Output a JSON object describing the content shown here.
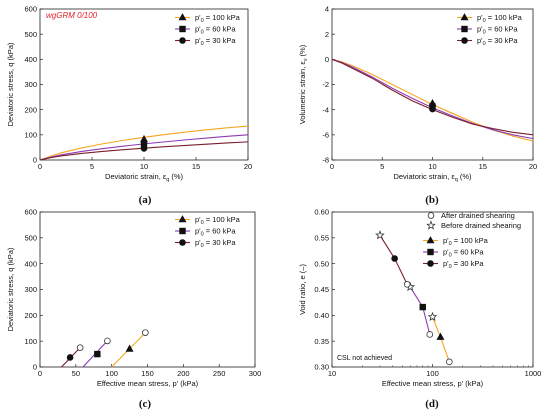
{
  "colors": {
    "s100": "#f5a623",
    "s60": "#8e3bb5",
    "s30": "#7a1f2b",
    "axis": "#222222",
    "note_red": "#e8202a"
  },
  "chart_data": [
    {
      "type": "line",
      "caption": "(a)",
      "xlabel": "Deviatoric strain, ε",
      "xlabel_sub": "q",
      "xlabel_unit": " (%)",
      "ylabel": "Deviatoric stress, q (kPa)",
      "xlim": [
        0,
        20
      ],
      "ylim": [
        0,
        600
      ],
      "xticks": [
        0,
        5,
        10,
        15,
        20
      ],
      "yticks": [
        0,
        100,
        200,
        300,
        400,
        500,
        600
      ],
      "annotation": "wgGRM 0/100",
      "legend_position": "top-right",
      "series": [
        {
          "name": "p'₀ = 100 kPa",
          "marker": "triangle",
          "color": "#f5a623",
          "x": [
            0,
            1,
            2,
            4,
            6,
            8,
            10,
            12,
            14,
            16,
            18,
            20
          ],
          "y": [
            0,
            15,
            28,
            48,
            64,
            78,
            90,
            101,
            111,
            120,
            128,
            135
          ],
          "marker_points": [
            {
              "x": 10,
              "y": 82
            }
          ]
        },
        {
          "name": "p'₀ = 60 kPa",
          "marker": "square",
          "color": "#8e3bb5",
          "x": [
            0,
            1,
            2,
            4,
            6,
            8,
            10,
            12,
            14,
            16,
            18,
            20
          ],
          "y": [
            0,
            11,
            20,
            34,
            45,
            55,
            64,
            72,
            80,
            87,
            94,
            100
          ],
          "marker_points": [
            {
              "x": 10,
              "y": 62
            }
          ]
        },
        {
          "name": "p'₀ = 30 kPa",
          "marker": "circle",
          "color": "#7a1f2b",
          "x": [
            0,
            1,
            2,
            4,
            6,
            8,
            10,
            12,
            14,
            16,
            18,
            20
          ],
          "y": [
            0,
            9,
            16,
            26,
            34,
            41,
            47,
            53,
            58,
            63,
            68,
            72
          ],
          "marker_points": [
            {
              "x": 10,
              "y": 46
            }
          ]
        }
      ]
    },
    {
      "type": "line",
      "caption": "(b)",
      "xlabel": "Deviatoric strain, ε",
      "xlabel_sub": "q",
      "xlabel_unit": " (%)",
      "ylabel": "Volumetric strain, ε",
      "ylabel_sub": "v",
      "ylabel_unit": " (%)",
      "xlim": [
        0,
        20
      ],
      "ylim": [
        -8,
        4
      ],
      "xticks": [
        0,
        5,
        10,
        15,
        20
      ],
      "yticks": [
        -8,
        -6,
        -4,
        -2,
        0,
        2,
        4
      ],
      "legend_position": "top-right",
      "series": [
        {
          "name": "p'₀ = 100 kPa",
          "marker": "triangle",
          "color": "#f5a623",
          "x": [
            0,
            1,
            2,
            4,
            6,
            8,
            10,
            12,
            14,
            16,
            18,
            20
          ],
          "y": [
            0,
            -0.2,
            -0.5,
            -1.2,
            -2.0,
            -2.8,
            -3.6,
            -4.3,
            -5.0,
            -5.6,
            -6.1,
            -6.5
          ],
          "marker_points": [
            {
              "x": 10,
              "y": -3.5
            }
          ]
        },
        {
          "name": "p'₀ = 60 kPa",
          "marker": "square",
          "color": "#8e3bb5",
          "x": [
            0,
            1,
            2,
            4,
            6,
            8,
            10,
            12,
            14,
            16,
            18,
            20
          ],
          "y": [
            0,
            -0.25,
            -0.6,
            -1.4,
            -2.3,
            -3.1,
            -3.85,
            -4.5,
            -5.1,
            -5.6,
            -6.0,
            -6.3
          ],
          "marker_points": [
            {
              "x": 10,
              "y": -3.75
            }
          ]
        },
        {
          "name": "p'₀ = 30 kPa",
          "marker": "circle",
          "color": "#7a1f2b",
          "x": [
            0,
            1,
            2,
            4,
            6,
            8,
            10,
            12,
            14,
            16,
            18,
            20
          ],
          "y": [
            0,
            -0.3,
            -0.7,
            -1.5,
            -2.45,
            -3.3,
            -4.0,
            -4.6,
            -5.15,
            -5.5,
            -5.8,
            -6.0
          ],
          "marker_points": [
            {
              "x": 10,
              "y": -3.95
            }
          ]
        }
      ]
    },
    {
      "type": "line",
      "caption": "(c)",
      "xlabel": "Effective mean stress, p' (kPa)",
      "ylabel": "Deviatoric stress, q (kPa)",
      "xlim": [
        0,
        300
      ],
      "ylim": [
        0,
        600
      ],
      "xticks": [
        0,
        50,
        100,
        150,
        200,
        250,
        300
      ],
      "yticks": [
        0,
        100,
        200,
        300,
        400,
        500,
        600
      ],
      "legend_position": "top-right",
      "series": [
        {
          "name": "p'₀ = 100 kPa",
          "marker": "triangle",
          "color": "#f5a623",
          "x": [
            100,
            147
          ],
          "y": [
            0,
            133
          ],
          "marker_points": [
            {
              "x": 125,
              "y": 70,
              "filled": true
            },
            {
              "x": 147,
              "y": 133,
              "filled": false
            }
          ]
        },
        {
          "name": "p'₀ = 60 kPa",
          "marker": "square",
          "color": "#8e3bb5",
          "x": [
            60,
            94
          ],
          "y": [
            0,
            101
          ],
          "marker_points": [
            {
              "x": 80,
              "y": 50,
              "filled": true
            },
            {
              "x": 94,
              "y": 101,
              "filled": false
            }
          ]
        },
        {
          "name": "p'₀ = 30 kPa",
          "marker": "circle",
          "color": "#7a1f2b",
          "x": [
            30,
            56
          ],
          "y": [
            0,
            75
          ],
          "marker_points": [
            {
              "x": 42,
              "y": 37,
              "filled": true
            },
            {
              "x": 56,
              "y": 75,
              "filled": false
            }
          ]
        }
      ]
    },
    {
      "type": "line",
      "caption": "(d)",
      "xlabel": "Effective mean stress, p' (kPa)",
      "ylabel": "Void ratio, e (–)",
      "xscale": "log",
      "xlim": [
        10,
        1000
      ],
      "ylim": [
        0.3,
        0.6
      ],
      "xticks": [
        10,
        100,
        1000
      ],
      "yticks": [
        0.3,
        0.35,
        0.4,
        0.45,
        0.5,
        0.55,
        0.6
      ],
      "annotation": "CSL not achieved",
      "legend_position": "top-right",
      "legend_extra": [
        {
          "name": "After drained shearing",
          "marker": "open-circle"
        },
        {
          "name": "Before drained shearing",
          "marker": "star"
        }
      ],
      "series": [
        {
          "name": "p'₀ = 100 kPa",
          "marker": "triangle",
          "color": "#f5a623",
          "x": [
            100,
            120,
            147
          ],
          "y": [
            0.397,
            0.358,
            0.31
          ],
          "marker_points": [
            {
              "x": 120,
              "y": 0.358,
              "filled": true
            },
            {
              "x": 147,
              "y": 0.31,
              "filled": false
            },
            {
              "x": 100,
              "y": 0.397,
              "star": true
            }
          ]
        },
        {
          "name": "p'₀ = 60 kPa",
          "marker": "square",
          "color": "#8e3bb5",
          "x": [
            60,
            80,
            94
          ],
          "y": [
            0.455,
            0.416,
            0.363
          ],
          "marker_points": [
            {
              "x": 80,
              "y": 0.416,
              "filled": true
            },
            {
              "x": 94,
              "y": 0.363,
              "filled": false
            },
            {
              "x": 60,
              "y": 0.455,
              "star": true
            }
          ]
        },
        {
          "name": "p'₀ = 30 kPa",
          "marker": "circle",
          "color": "#7a1f2b",
          "x": [
            30,
            42,
            56
          ],
          "y": [
            0.555,
            0.51,
            0.46
          ],
          "marker_points": [
            {
              "x": 42,
              "y": 0.51,
              "filled": true
            },
            {
              "x": 56,
              "y": 0.46,
              "filled": false
            },
            {
              "x": 30,
              "y": 0.555,
              "star": true
            }
          ]
        }
      ]
    }
  ]
}
